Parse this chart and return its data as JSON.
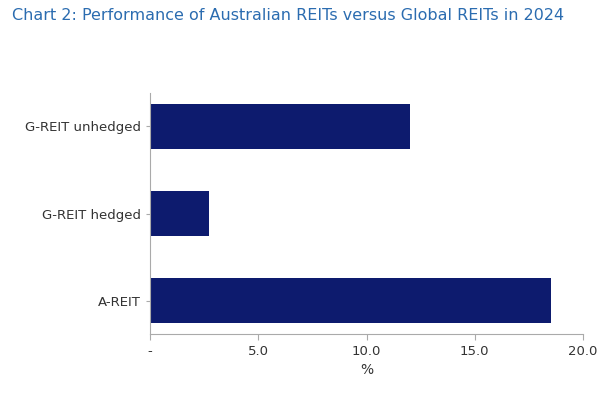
{
  "title": "Chart 2: Performance of Australian REITs versus Global REITs in 2024",
  "title_color": "#2B6CB0",
  "title_fontsize": 11.5,
  "categories": [
    "A-REIT",
    "G-REIT hedged",
    "G-REIT unhedged"
  ],
  "values": [
    18.5,
    2.7,
    12.0
  ],
  "bar_color": "#0D1B6E",
  "xlabel": "%",
  "xlim": [
    0,
    20.0
  ],
  "xticks": [
    0,
    5.0,
    10.0,
    15.0,
    20.0
  ],
  "xticklabels": [
    "-",
    "5.0",
    "10.0",
    "15.0",
    "20.0"
  ],
  "background_color": "#ffffff",
  "axes_background_color": "#ffffff",
  "bar_height": 0.52,
  "xlabel_fontsize": 10,
  "tick_fontsize": 9.5,
  "label_fontsize": 9.5,
  "spine_color": "#aaaaaa"
}
